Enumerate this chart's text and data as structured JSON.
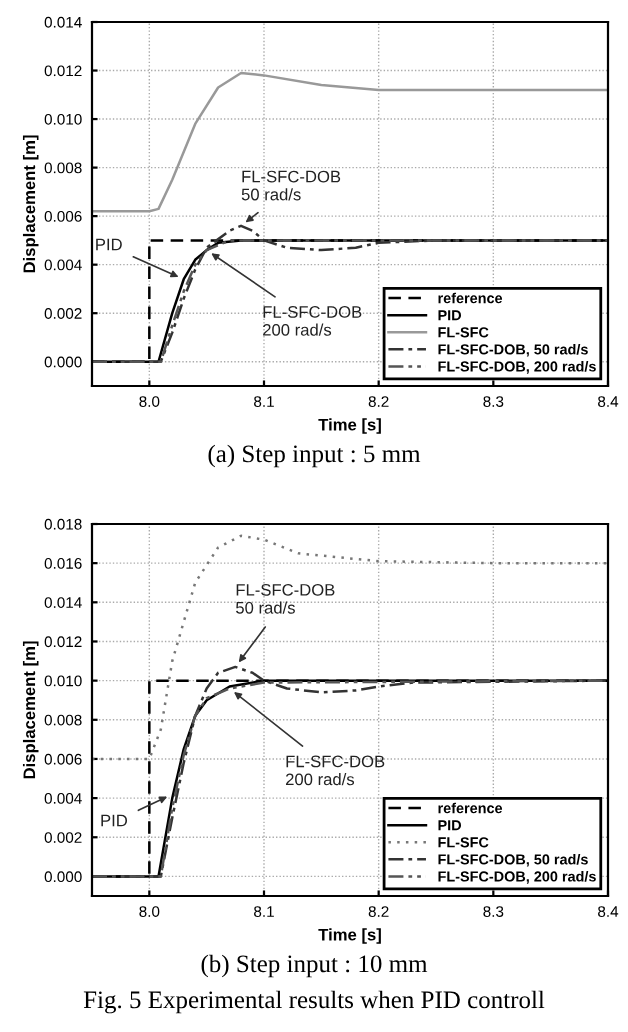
{
  "chart_data": [
    {
      "type": "line",
      "xlabel": "Time [s]",
      "ylabel": "Displacement [m]",
      "xlim": [
        7.95,
        8.4
      ],
      "xticks": [
        {
          "value": 8.0,
          "label": "8.0"
        },
        8.1,
        8.2,
        8.3,
        8.4
      ],
      "ylim": [
        -0.001,
        0.014
      ],
      "yticks": [
        {
          "value": 0,
          "label": "0.000"
        },
        {
          "value": 0.002,
          "label": "0.002"
        },
        {
          "value": 0.004,
          "label": "0.004"
        },
        {
          "value": 0.006,
          "label": "0.006"
        },
        {
          "value": 0.008,
          "label": "0.008"
        },
        {
          "value": 0.01,
          "label": "0.010"
        },
        {
          "value": 0.012,
          "label": "0.012"
        },
        {
          "value": 0.014,
          "label": "0.014"
        }
      ],
      "grid": true,
      "legend": "bottom right",
      "series": [
        {
          "name": "reference",
          "color": "#000000",
          "line_style": "dashed",
          "x": [
            7.95,
            8.0,
            8.0,
            8.4
          ],
          "values": [
            0,
            0,
            0.005,
            0.005
          ]
        },
        {
          "name": "PID",
          "color": "#000000",
          "line_style": "solid",
          "x": [
            7.95,
            8.008,
            8.02,
            8.03,
            8.04,
            8.05,
            8.06,
            8.08,
            8.4
          ],
          "values": [
            0,
            0,
            0.002,
            0.0034,
            0.0042,
            0.0046,
            0.0049,
            0.005,
            0.005
          ]
        },
        {
          "name": "FL-SFC",
          "color": "#999999",
          "line_style": "solid",
          "x": [
            7.95,
            8.0,
            8.008,
            8.02,
            8.04,
            8.06,
            8.08,
            8.1,
            8.15,
            8.2,
            8.3,
            8.4
          ],
          "values": [
            0.0062,
            0.0062,
            0.0063,
            0.0075,
            0.0098,
            0.0113,
            0.0119,
            0.0118,
            0.0114,
            0.0112,
            0.0112,
            0.0112
          ]
        },
        {
          "name": "FL-SFC-DOB, 50 rad/s",
          "color": "#333333",
          "line_style": "dashdot",
          "x": [
            7.95,
            8.01,
            8.02,
            8.03,
            8.04,
            8.05,
            8.07,
            8.08,
            8.09,
            8.1,
            8.12,
            8.15,
            8.18,
            8.2,
            8.25,
            8.4
          ],
          "values": [
            0,
            0,
            0.0012,
            0.0026,
            0.0038,
            0.0047,
            0.0054,
            0.0056,
            0.0054,
            0.005,
            0.0047,
            0.0046,
            0.0047,
            0.0049,
            0.005,
            0.005
          ]
        },
        {
          "name": "FL-SFC-DOB, 200 rad/s",
          "color": "#555555",
          "line_style": "dashdotdot",
          "x": [
            7.95,
            8.01,
            8.02,
            8.03,
            8.04,
            8.05,
            8.07,
            8.1,
            8.4
          ],
          "values": [
            0,
            0,
            0.0015,
            0.0029,
            0.004,
            0.0046,
            0.005,
            0.005,
            0.005
          ]
        }
      ],
      "annotations": [
        {
          "text": "FL-SFC-DOB\n50 rad/s",
          "x": 8.08,
          "y": 0.0056
        },
        {
          "text": "PID",
          "x": 8.03,
          "y": 0.0034
        },
        {
          "text": "FL-SFC-DOB\n200 rad/s",
          "x": 8.05,
          "y": 0.0046
        },
        "(a) Step input : 5 mm"
      ]
    },
    {
      "type": "line",
      "xlabel": "Time [s]",
      "ylabel": "Displacement [m]",
      "xlim": [
        7.95,
        8.4
      ],
      "xticks": [
        {
          "value": 8.0,
          "label": "8.0"
        },
        8.1,
        8.2,
        8.3,
        8.4
      ],
      "ylim": [
        -0.001,
        0.018
      ],
      "yticks": [
        {
          "value": 0,
          "label": "0.000"
        },
        {
          "value": 0.002,
          "label": "0.002"
        },
        {
          "value": 0.004,
          "label": "0.004"
        },
        {
          "value": 0.006,
          "label": "0.006"
        },
        {
          "value": 0.008,
          "label": "0.008"
        },
        {
          "value": 0.01,
          "label": "0.010"
        },
        {
          "value": 0.012,
          "label": "0.012"
        },
        {
          "value": 0.014,
          "label": "0.014"
        },
        {
          "value": 0.016,
          "label": "0.016"
        },
        {
          "value": 0.018,
          "label": "0.018"
        }
      ],
      "grid": true,
      "legend": "bottom right",
      "series": [
        {
          "name": "reference",
          "color": "#000000",
          "line_style": "dashed",
          "x": [
            7.95,
            8.0,
            8.0,
            8.4
          ],
          "values": [
            0,
            0,
            0.01,
            0.01
          ]
        },
        {
          "name": "PID",
          "color": "#000000",
          "line_style": "solid",
          "x": [
            7.95,
            8.008,
            8.02,
            8.03,
            8.04,
            8.05,
            8.07,
            8.1,
            8.4
          ],
          "values": [
            0,
            0,
            0.004,
            0.0065,
            0.0082,
            0.009,
            0.0097,
            0.01,
            0.01
          ]
        },
        {
          "name": "FL-SFC",
          "color": "#777777",
          "line_style": "dotted",
          "x": [
            7.95,
            8.0,
            8.01,
            8.02,
            8.04,
            8.06,
            8.08,
            8.1,
            8.13,
            8.2,
            8.3,
            8.4
          ],
          "values": [
            0.006,
            0.006,
            0.0075,
            0.011,
            0.015,
            0.0168,
            0.0174,
            0.0172,
            0.0165,
            0.0161,
            0.016,
            0.016
          ]
        },
        {
          "name": "FL-SFC-DOB, 50 rad/s",
          "color": "#333333",
          "line_style": "dashdot",
          "x": [
            7.95,
            8.01,
            8.02,
            8.03,
            8.04,
            8.05,
            8.06,
            8.075,
            8.09,
            8.1,
            8.12,
            8.15,
            8.18,
            8.2,
            8.23,
            8.4
          ],
          "values": [
            0,
            0,
            0.003,
            0.0058,
            0.0082,
            0.0096,
            0.0104,
            0.0107,
            0.0104,
            0.01,
            0.0096,
            0.0094,
            0.0095,
            0.0097,
            0.0099,
            0.01
          ]
        },
        {
          "name": "FL-SFC-DOB, 200 rad/s",
          "color": "#555555",
          "line_style": "dashdotdot",
          "x": [
            7.95,
            8.01,
            8.02,
            8.03,
            8.04,
            8.05,
            8.07,
            8.1,
            8.4
          ],
          "values": [
            0,
            0,
            0.0035,
            0.0062,
            0.0082,
            0.0091,
            0.0096,
            0.0099,
            0.01
          ]
        }
      ],
      "annotations": [
        {
          "text": "FL-SFC-DOB\n50 rad/s",
          "x": 8.075,
          "y": 0.0107
        },
        {
          "text": "PID",
          "x": 8.02,
          "y": 0.0042
        },
        {
          "text": "FL-SFC-DOB\n200 rad/s",
          "x": 8.07,
          "y": 0.0096
        },
        "(b) Step input : 10 mm",
        "Fig. 5 Experimental results when PID controll"
      ]
    }
  ]
}
